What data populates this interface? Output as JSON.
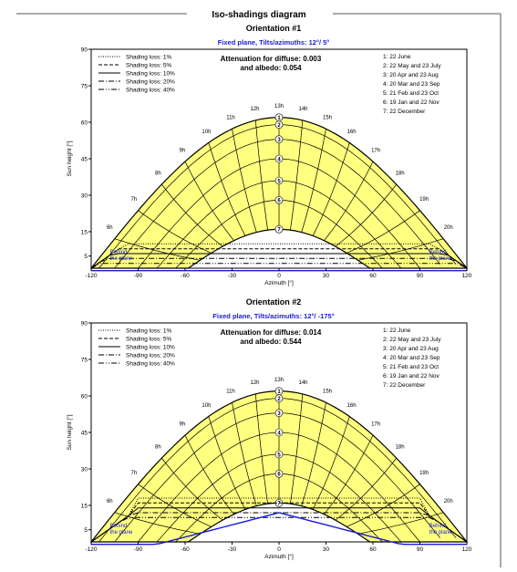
{
  "page": {
    "title": "Iso-shadings diagram"
  },
  "legend_lines": [
    {
      "label": "Shading loss: 1%",
      "dash": "1,1.5"
    },
    {
      "label": "Shading loss: 5%",
      "dash": "4,2"
    },
    {
      "label": "Shading loss: 10%",
      "dash": ""
    },
    {
      "label": "Shading loss: 20%",
      "dash": "6,2,1,2"
    },
    {
      "label": "Shading loss: 40%",
      "dash": "6,2,1,2,1,2"
    }
  ],
  "legend_dates": [
    "1: 22 June",
    "2: 22 May and 23 July",
    "3: 20 Apr and 23 Aug",
    "4: 20 Mar and 23 Sep",
    "5: 21 Feb and 23 Oct",
    "6: 19 Jan and 22 Nov",
    "7: 22 December"
  ],
  "hour_labels": [
    "6h",
    "7h",
    "8h",
    "9h",
    "10h",
    "11h",
    "12h",
    "13h",
    "14h",
    "15h",
    "16h",
    "17h",
    "18h",
    "19h",
    "20h"
  ],
  "chart_data": [
    {
      "type": "line",
      "orientation_label": "Orientation #1",
      "subtitle": "Fixed plane, Tilts/azimuths: 12°/ 5°",
      "annotation": "Attenuation for diffuse: 0.003\nand albedo: 0.054",
      "xlabel": "Azimuth [°]",
      "ylabel": "Sun height [°]",
      "xlim": [
        -120,
        120
      ],
      "ylim": [
        0,
        90
      ],
      "xticks": [
        -120,
        -90,
        -60,
        -30,
        0,
        30,
        60,
        90,
        120
      ],
      "yticks": [
        5,
        15,
        30,
        45,
        60,
        75,
        90
      ],
      "plane_label": "Behind\nthe plane",
      "sun_path_max_heights": [
        {
          "date": "1",
          "value": 62
        },
        {
          "date": "7",
          "value": 16
        }
      ],
      "plane_curve_peak": -2,
      "shading_band_height": 10
    },
    {
      "type": "line",
      "orientation_label": "Orientation #2",
      "subtitle": "Fixed plane, Tilts/azimuths: 12°/ -175°",
      "annotation": "Attenuation for diffuse: 0.014\nand albedo: 0.544",
      "xlabel": "Azimuth [°]",
      "ylabel": "Sun height [°]",
      "xlim": [
        -120,
        120
      ],
      "ylim": [
        0,
        90
      ],
      "xticks": [
        -120,
        -90,
        -60,
        -30,
        0,
        30,
        60,
        90,
        120
      ],
      "yticks": [
        5,
        15,
        30,
        45,
        60,
        75,
        90
      ],
      "plane_label": "Behind\nthe plane",
      "sun_path_max_heights": [
        {
          "date": "1",
          "value": 62
        },
        {
          "date": "7",
          "value": 16
        }
      ],
      "plane_curve_peak": 12,
      "shading_band_height": 18
    }
  ]
}
